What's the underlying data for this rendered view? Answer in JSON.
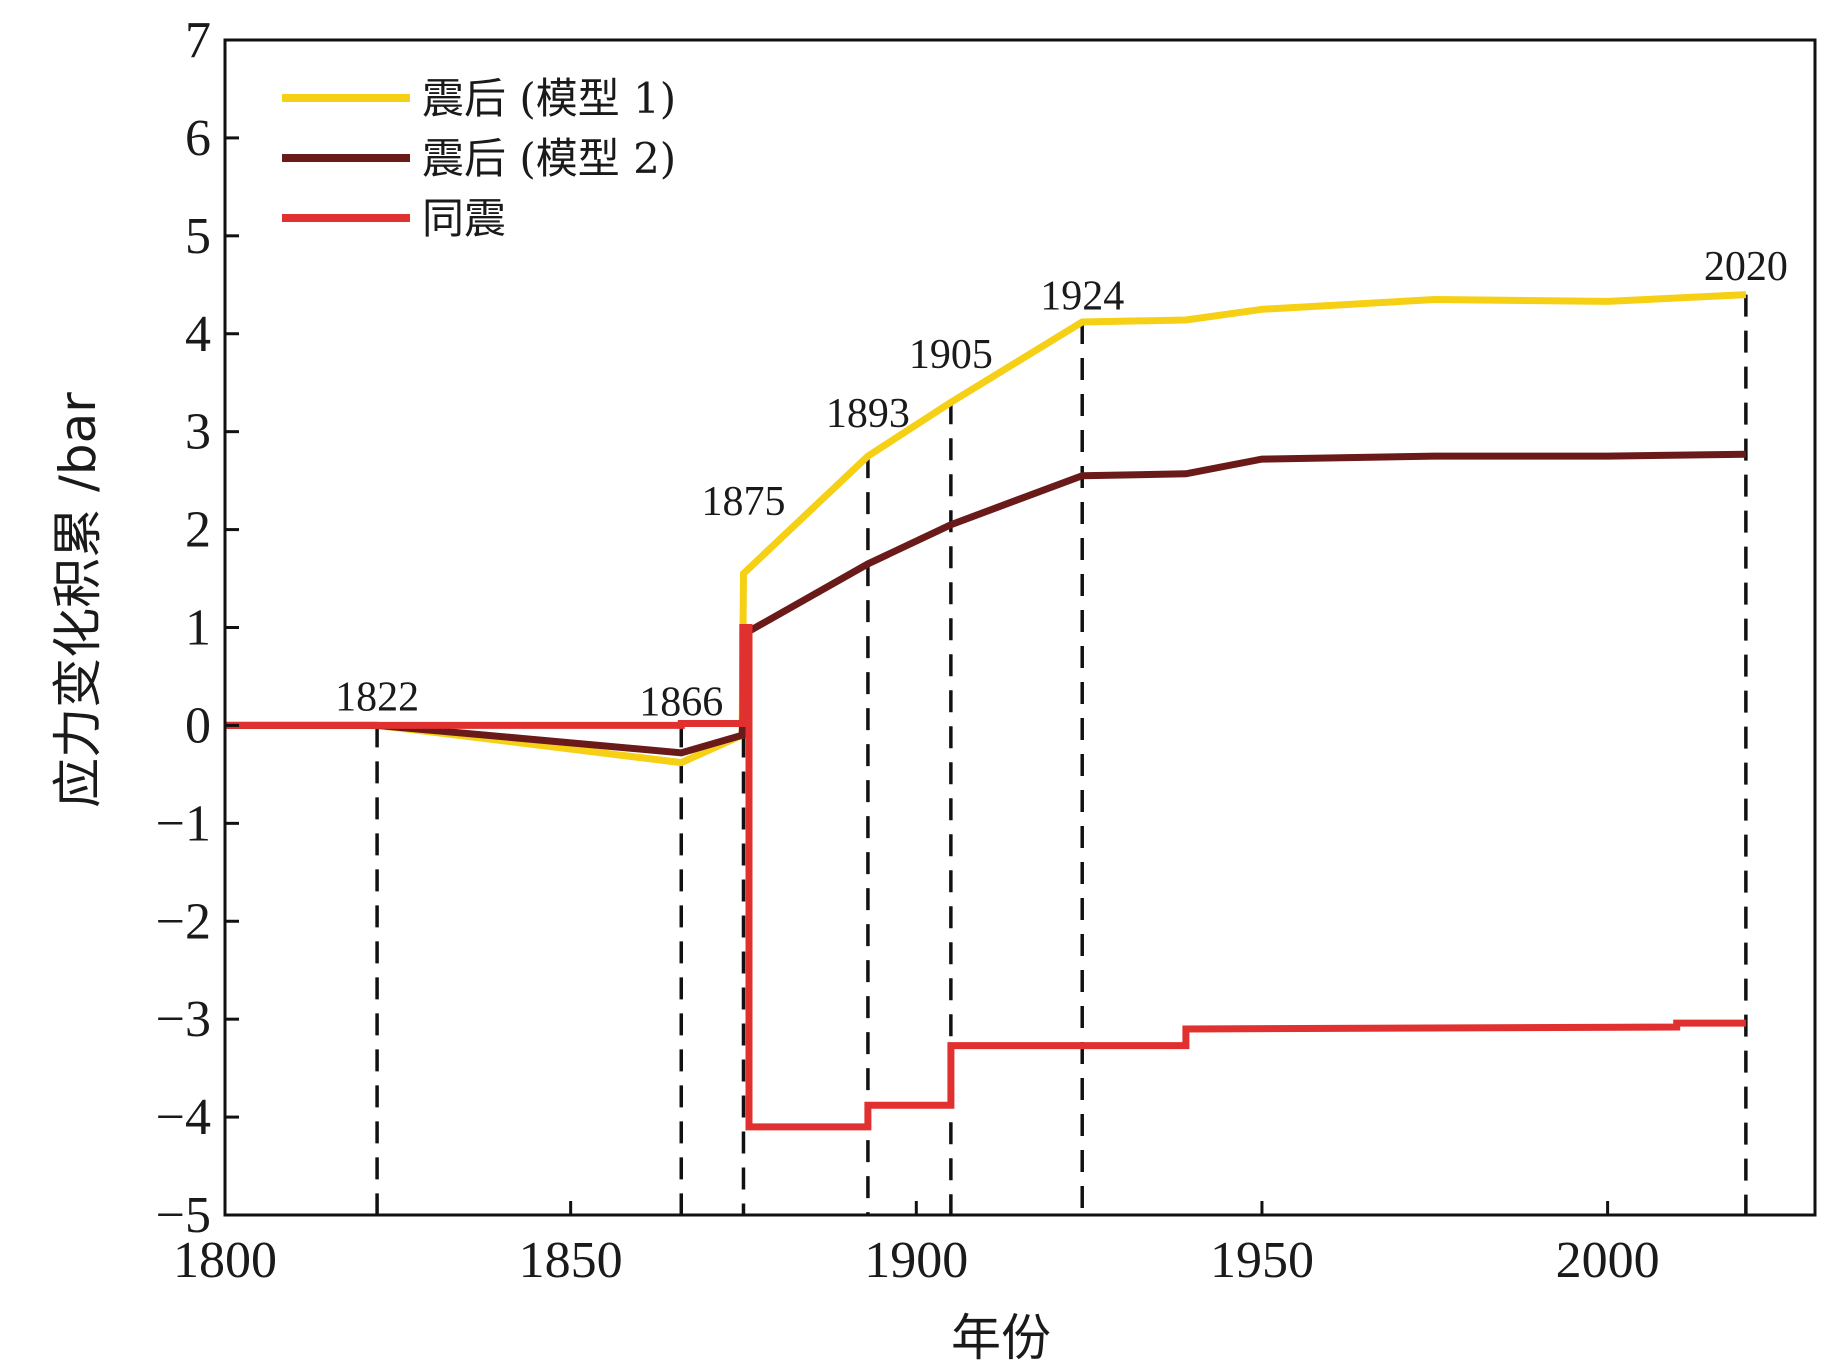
{
  "chart_data": {
    "type": "line",
    "xlabel": "年份",
    "ylabel": "应力变化积累 /bar",
    "xlim": [
      1800,
      2030
    ],
    "ylim": [
      -5,
      7
    ],
    "xticks": [
      1800,
      1850,
      1900,
      1950,
      2000
    ],
    "yticks": [
      -5,
      -4,
      -3,
      -2,
      -1,
      0,
      1,
      2,
      3,
      4,
      5,
      6,
      7
    ],
    "grid": false,
    "legend_position": "top-left",
    "series": [
      {
        "name": "震后 (模型 1)",
        "color": "#f5d015",
        "x": [
          1800,
          1822,
          1866,
          1874.8,
          1875,
          1893,
          1905,
          1924,
          1939,
          1950,
          1975,
          2000,
          2020
        ],
        "y": [
          0,
          0,
          -0.38,
          -0.1,
          1.55,
          2.75,
          3.3,
          4.12,
          4.14,
          4.25,
          4.35,
          4.33,
          4.4
        ]
      },
      {
        "name": "震后 (模型 2)",
        "color": "#6b1a1a",
        "x": [
          1800,
          1822,
          1866,
          1874.8,
          1875.5,
          1893,
          1905,
          1924,
          1939,
          1950,
          1975,
          2000,
          2020
        ],
        "y": [
          0,
          0,
          -0.28,
          -0.1,
          0.95,
          1.65,
          2.05,
          2.55,
          2.57,
          2.72,
          2.75,
          2.75,
          2.77
        ]
      },
      {
        "name": "同震",
        "color": "#e03030",
        "x": [
          1800,
          1866,
          1866,
          1874.9,
          1874.9,
          1875.8,
          1875.8,
          1893,
          1893,
          1905,
          1905,
          1939,
          1939,
          2010,
          2010,
          2020
        ],
        "y": [
          0,
          0,
          0.02,
          0.02,
          1.0,
          1.0,
          -4.1,
          -4.1,
          -3.88,
          -3.88,
          -3.27,
          -3.27,
          -3.1,
          -3.08,
          -3.04,
          -3.04
        ]
      }
    ],
    "event_lines": [
      {
        "year": 1822,
        "label": "1822",
        "label_y": 0.15
      },
      {
        "year": 1866,
        "label": "1866",
        "label_y": 0.1
      },
      {
        "year": 1875,
        "label": "1875",
        "label_y": 2.15
      },
      {
        "year": 1893,
        "label": "1893",
        "label_y": 3.05
      },
      {
        "year": 1905,
        "label": "1905",
        "label_y": 3.65
      },
      {
        "year": 1924,
        "label": "1924",
        "label_y": 4.25
      },
      {
        "year": 2020,
        "label": "2020",
        "label_y": 4.55
      }
    ]
  }
}
